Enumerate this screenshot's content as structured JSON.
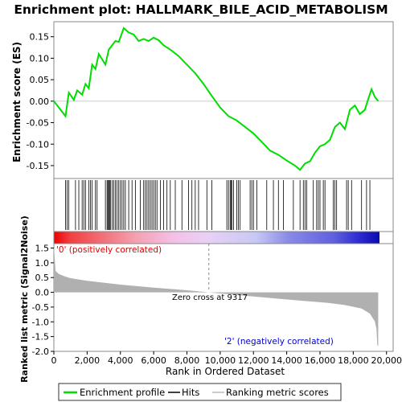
{
  "title": "Enrichment plot: HALLMARK_BILE_ACID_METABOLISM",
  "es_panel": {
    "ylabel": "Enrichment score (ES)",
    "ylim": [
      -0.18,
      0.185
    ],
    "yticks": [
      "0.15",
      "0.10",
      "0.05",
      "0.00",
      "-0.05",
      "-0.10",
      "-0.15"
    ],
    "ytick_values": [
      0.15,
      0.1,
      0.05,
      0.0,
      -0.05,
      -0.1,
      -0.15
    ]
  },
  "metric_panel": {
    "ylabel": "Ranked list metric (Signal2Noise)",
    "ylim": [
      -2.0,
      1.65
    ],
    "yticks": [
      "1.5",
      "1.0",
      "0.5",
      "0.0",
      "-0.5",
      "-1.0",
      "-1.5",
      "-2.0"
    ],
    "ytick_values": [
      1.5,
      1.0,
      0.5,
      0.0,
      -0.5,
      -1.0,
      -1.5,
      -2.0
    ],
    "positive_label": "'0' (positively correlated)",
    "negative_label": "'2' (negatively correlated)",
    "zero_cross_label": "Zero cross at 9317",
    "zero_cross": 9317
  },
  "xaxis": {
    "label": "Rank in Ordered Dataset",
    "xlim": [
      0,
      20400
    ],
    "ticks": [
      "0",
      "2,000",
      "4,000",
      "6,000",
      "8,000",
      "10,000",
      "12,000",
      "14,000",
      "16,000",
      "18,000",
      "20,000"
    ],
    "tick_values": [
      0,
      2000,
      4000,
      6000,
      8000,
      10000,
      12000,
      14000,
      16000,
      18000,
      20000
    ]
  },
  "legend": {
    "items": [
      {
        "label": "Enrichment profile",
        "color": "#00dd00"
      },
      {
        "label": "Hits",
        "color": "#000000"
      },
      {
        "label": "Ranking metric scores",
        "color": "#bbbbbb"
      }
    ]
  },
  "colors": {
    "profile": "#00dd00",
    "metric_fill": "#b0b0b0",
    "positive_text": "#dd0000",
    "negative_text": "#0000cc",
    "frame": "#888888"
  },
  "chart_data": {
    "type": "line",
    "series": [
      {
        "name": "Enrichment profile",
        "x": [
          0,
          700,
          900,
          1200,
          1400,
          1700,
          1900,
          2100,
          2300,
          2500,
          2700,
          3100,
          3300,
          3500,
          3700,
          3900,
          4200,
          4500,
          4800,
          5100,
          5400,
          5700,
          6000,
          6300,
          6600,
          7000,
          7500,
          8000,
          8500,
          9000,
          9500,
          10000,
          10500,
          11000,
          11500,
          12000,
          12500,
          13000,
          13500,
          14000,
          14500,
          14800,
          15100,
          15400,
          15700,
          16000,
          16300,
          16600,
          16900,
          17200,
          17500,
          17800,
          18100,
          18400,
          18700,
          18900,
          19100,
          19300,
          19500
        ],
        "y": [
          0.0,
          -0.035,
          0.02,
          0.003,
          0.025,
          0.015,
          0.04,
          0.03,
          0.085,
          0.075,
          0.11,
          0.085,
          0.12,
          0.13,
          0.14,
          0.138,
          0.17,
          0.16,
          0.155,
          0.14,
          0.145,
          0.14,
          0.148,
          0.142,
          0.13,
          0.12,
          0.105,
          0.085,
          0.065,
          0.04,
          0.012,
          -0.015,
          -0.035,
          -0.045,
          -0.06,
          -0.075,
          -0.095,
          -0.115,
          -0.125,
          -0.138,
          -0.15,
          -0.16,
          -0.145,
          -0.14,
          -0.12,
          -0.105,
          -0.1,
          -0.09,
          -0.06,
          -0.05,
          -0.065,
          -0.02,
          -0.01,
          -0.03,
          -0.02,
          0.005,
          0.028,
          0.01,
          0.0
        ]
      }
    ],
    "hits": [
      700,
      800,
      900,
      1300,
      1500,
      1700,
      1800,
      1900,
      2100,
      2200,
      2300,
      2500,
      2600,
      3100,
      3200,
      3250,
      3300,
      3350,
      3400,
      3500,
      3600,
      3700,
      3800,
      3900,
      4000,
      4100,
      4200,
      4300,
      4500,
      4700,
      4900,
      5200,
      5400,
      5500,
      5600,
      5700,
      5800,
      5900,
      6000,
      6100,
      6200,
      6400,
      6600,
      6800,
      7000,
      7300,
      7700,
      8100,
      8300,
      8500,
      8700,
      9200,
      9500,
      10400,
      10500,
      10600,
      10650,
      10700,
      10800,
      11000,
      11100,
      11200,
      11800,
      11900,
      12000,
      12200,
      12800,
      13200,
      13500,
      13800,
      14400,
      14800,
      15000,
      15100,
      15200,
      15600,
      15800,
      15900,
      16000,
      16200,
      16300,
      16800,
      16900,
      17000,
      17600,
      17700,
      17900,
      18500,
      18800,
      19000
    ],
    "metric_curve": {
      "x": [
        0,
        100,
        300,
        600,
        1000,
        2000,
        4000,
        6000,
        8000,
        9317,
        11000,
        13000,
        15000,
        16500,
        17500,
        18500,
        19000,
        19300,
        19400,
        19450,
        19500
      ],
      "y": [
        1.6,
        0.72,
        0.62,
        0.55,
        0.48,
        0.39,
        0.26,
        0.16,
        0.07,
        0.0,
        -0.09,
        -0.19,
        -0.29,
        -0.36,
        -0.43,
        -0.55,
        -0.72,
        -0.98,
        -1.25,
        -1.8,
        -1.8
      ]
    },
    "xlim": [
      0,
      20400
    ],
    "xlabel": "Rank in Ordered Dataset",
    "ylabel": "Enrichment score (ES)"
  }
}
